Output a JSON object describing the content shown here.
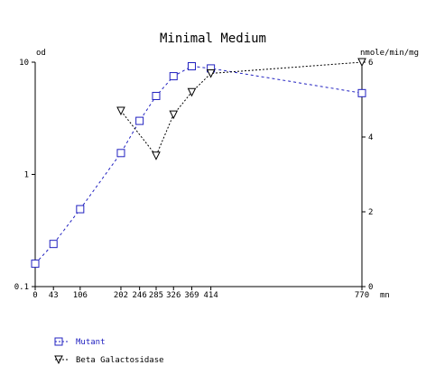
{
  "chart_data": {
    "type": "line",
    "title": "Minimal Medium",
    "x_unit": "mn",
    "y_left_label": "od",
    "y_right_label": "nmole/min/mg",
    "x_ticks": [
      0,
      43,
      106,
      202,
      246,
      285,
      326,
      369,
      414,
      770
    ],
    "x_range": [
      0,
      770
    ],
    "y_left": {
      "scale": "log",
      "range": [
        0.1,
        10
      ],
      "ticks": [
        "0.1",
        "1",
        "10"
      ]
    },
    "y_right": {
      "scale": "linear",
      "range": [
        0,
        6
      ],
      "ticks": [
        "0",
        "2",
        "4",
        "6"
      ]
    },
    "series": [
      {
        "name": "Mutant",
        "axis": "left",
        "color": "#2020c0",
        "marker": "square",
        "x": [
          0,
          43,
          106,
          202,
          246,
          285,
          326,
          369,
          414,
          770
        ],
        "y": [
          0.16,
          0.24,
          0.49,
          1.55,
          3.0,
          5.0,
          7.5,
          9.2,
          8.8,
          5.3
        ]
      },
      {
        "name": "Beta Galactosidase",
        "axis": "right",
        "color": "#000000",
        "marker": "triangle-down",
        "x": [
          202,
          285,
          326,
          369,
          414,
          770
        ],
        "y": [
          4.7,
          3.5,
          4.6,
          5.2,
          5.7,
          6.0
        ]
      }
    ]
  }
}
